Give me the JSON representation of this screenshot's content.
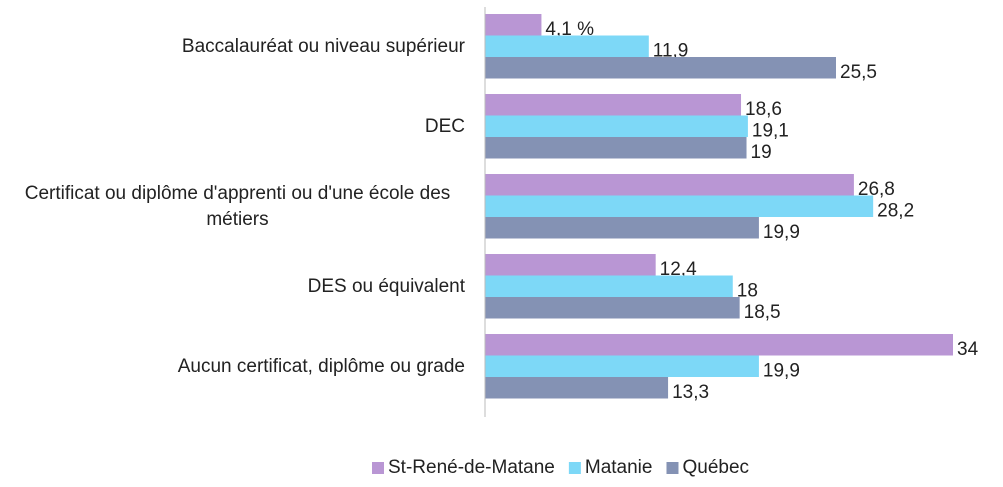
{
  "chart_data": {
    "type": "bar",
    "orientation": "horizontal",
    "categories": [
      "Baccalauréat ou niveau supérieur",
      "DEC",
      "Certificat ou diplôme d'apprenti ou d'une école des métiers",
      "DES ou équivalent",
      "Aucun certificat, diplôme ou grade"
    ],
    "series": [
      {
        "name": "St-René-de-Matane",
        "color": "#b996d4",
        "values": [
          4.1,
          18.6,
          26.8,
          12.4,
          34
        ],
        "value_labels": [
          "4,1 %",
          "18,6",
          "26,8",
          "12,4",
          "34"
        ]
      },
      {
        "name": "Matanie",
        "color": "#7dd8f7",
        "values": [
          11.9,
          19.1,
          28.2,
          18,
          19.9
        ],
        "value_labels": [
          "11,9",
          "19,1",
          "28,2",
          "18",
          "19,9"
        ]
      },
      {
        "name": "Québec",
        "color": "#8492b4",
        "values": [
          25.5,
          19,
          19.9,
          18.5,
          13.3
        ],
        "value_labels": [
          "25,5",
          "19",
          "19,9",
          "18,5",
          "13,3"
        ]
      }
    ],
    "legend": "bottom"
  }
}
